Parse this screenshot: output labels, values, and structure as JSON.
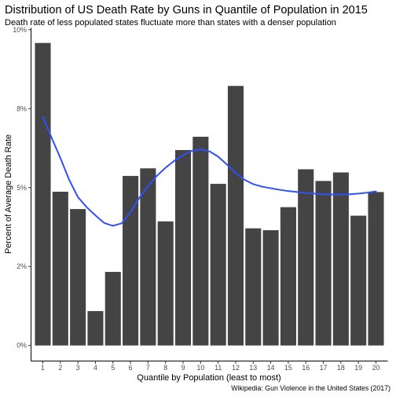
{
  "chart_data": {
    "type": "bar",
    "title": "Distribution of US Death Rate by Guns in Quantile of Population in 2015",
    "subtitle": "Death rate of less populated states fluctuate more than states with a denser population",
    "xlabel": "Quantile by Population (least to most)",
    "ylabel": "Percent of Average Death Rate",
    "caption": "Wikipedia: Gun Violence in the United States (2017)",
    "categories": [
      "1",
      "2",
      "3",
      "4",
      "5",
      "6",
      "7",
      "8",
      "9",
      "10",
      "11",
      "12",
      "13",
      "14",
      "15",
      "16",
      "17",
      "18",
      "19",
      "20"
    ],
    "values": [
      9.58,
      4.87,
      4.32,
      1.09,
      2.33,
      5.37,
      5.61,
      3.93,
      6.19,
      6.61,
      5.12,
      8.22,
      3.71,
      3.65,
      4.38,
      5.58,
      5.21,
      5.48,
      4.11,
      4.86
    ],
    "y_ticks": [
      0,
      2.5,
      5,
      7.5,
      10
    ],
    "y_tick_labels": [
      "0%",
      "2%",
      "5%",
      "8%",
      "10%"
    ],
    "ylim": [
      -0.48,
      10.07
    ],
    "xlim": [
      0.35,
      20.65
    ],
    "grid": false,
    "bar_color": "#444444",
    "smooth_line": {
      "color": "#3050F8",
      "x": [
        1,
        1.5,
        2,
        2.5,
        3,
        3.5,
        4,
        4.5,
        5,
        5.5,
        6,
        6.5,
        7,
        7.5,
        8,
        8.5,
        9,
        9.5,
        10,
        10.5,
        11,
        11.5,
        12,
        12.5,
        13,
        13.5,
        14,
        14.5,
        15,
        15.5,
        16,
        16.5,
        17,
        17.5,
        18,
        18.5,
        19,
        19.5,
        20
      ],
      "y": [
        7.24,
        6.58,
        5.94,
        5.25,
        4.7,
        4.38,
        4.12,
        3.88,
        3.79,
        3.87,
        4.22,
        4.67,
        5.05,
        5.37,
        5.63,
        5.85,
        6.03,
        6.16,
        6.21,
        6.15,
        5.98,
        5.73,
        5.46,
        5.25,
        5.11,
        5.03,
        4.98,
        4.93,
        4.89,
        4.86,
        4.83,
        4.81,
        4.79,
        4.78,
        4.78,
        4.79,
        4.81,
        4.84,
        4.88
      ]
    }
  }
}
